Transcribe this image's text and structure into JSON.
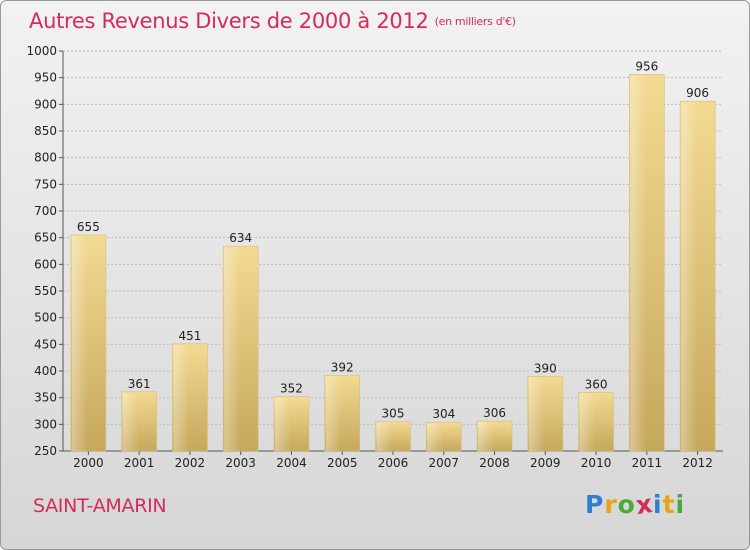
{
  "header": {
    "title": "Autres Revenus Divers de 2000 à 2012",
    "subtitle": "(en milliers d'€)"
  },
  "footer": {
    "commune": "SAINT-AMARIN",
    "logo": {
      "letters": [
        "P",
        "r",
        "o",
        "x",
        "i",
        "t",
        "i"
      ],
      "colors": [
        "#2f7fd0",
        "#e8a317",
        "#4aa83c",
        "#d42b5a",
        "#2f7fd0",
        "#e8a317",
        "#4aa83c"
      ]
    }
  },
  "chart_data": {
    "type": "bar",
    "categories": [
      "2000",
      "2001",
      "2002",
      "2003",
      "2004",
      "2005",
      "2006",
      "2007",
      "2008",
      "2009",
      "2010",
      "2011",
      "2012"
    ],
    "values": [
      655,
      361,
      451,
      634,
      352,
      392,
      305,
      304,
      306,
      390,
      360,
      956,
      906
    ],
    "data_labels": [
      "655",
      "361",
      "451",
      "634",
      "352",
      "392",
      "305",
      "304",
      "306",
      "390",
      "360",
      "956",
      "906"
    ],
    "ylim": [
      250,
      1000
    ],
    "yticks": [
      250,
      300,
      350,
      400,
      450,
      500,
      550,
      600,
      650,
      700,
      750,
      800,
      850,
      900,
      950,
      1000
    ],
    "grid": true,
    "bar_color": "#e8cf86",
    "title": "Autres Revenus Divers de 2000 à 2012",
    "xlabel": "",
    "ylabel": ""
  }
}
